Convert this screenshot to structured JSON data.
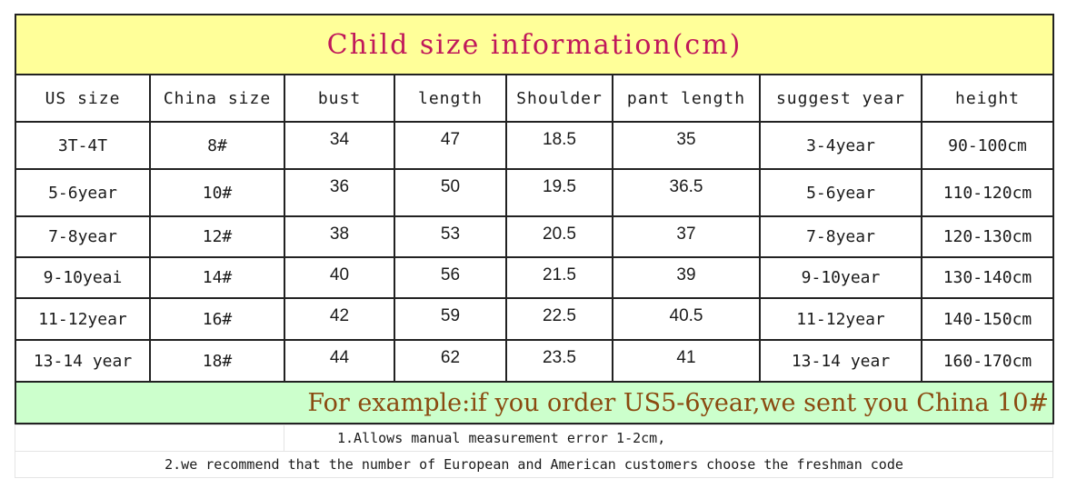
{
  "title": "Child size information(cm)",
  "headers": [
    "US size",
    "China size",
    "bust",
    "length",
    "Shoulder",
    "pant length",
    "suggest year",
    "height"
  ],
  "rows": [
    [
      "3T-4T",
      "8#",
      "34",
      "47",
      "18.5",
      "35",
      "3-4year",
      "90-100cm"
    ],
    [
      "5-6year",
      "10#",
      "36",
      "50",
      "19.5",
      "36.5",
      "5-6year",
      "110-120cm"
    ],
    [
      "7-8year",
      "12#",
      "38",
      "53",
      "20.5",
      "37",
      "7-8year",
      "120-130cm"
    ],
    [
      "9-10yeai",
      "14#",
      "40",
      "56",
      "21.5",
      "39",
      "9-10year",
      "130-140cm"
    ],
    [
      "11-12year",
      "16#",
      "42",
      "59",
      "22.5",
      "40.5",
      "11-12year",
      "140-150cm"
    ],
    [
      "13-14 year",
      "18#",
      "44",
      "62",
      "23.5",
      "41",
      "13-14 year",
      "160-170cm"
    ]
  ],
  "example": "For example:if you order US5-6year,we sent you China 10#",
  "notes": [
    "1.Allows manual measurement error 1-2cm,",
    "2.we recommend that the number of European and American customers choose the freshman code"
  ],
  "colors": {
    "title_bg": "#ffff99",
    "title_text": "#c0185a",
    "example_bg": "#ccffcc",
    "example_text": "#8a4a10"
  }
}
